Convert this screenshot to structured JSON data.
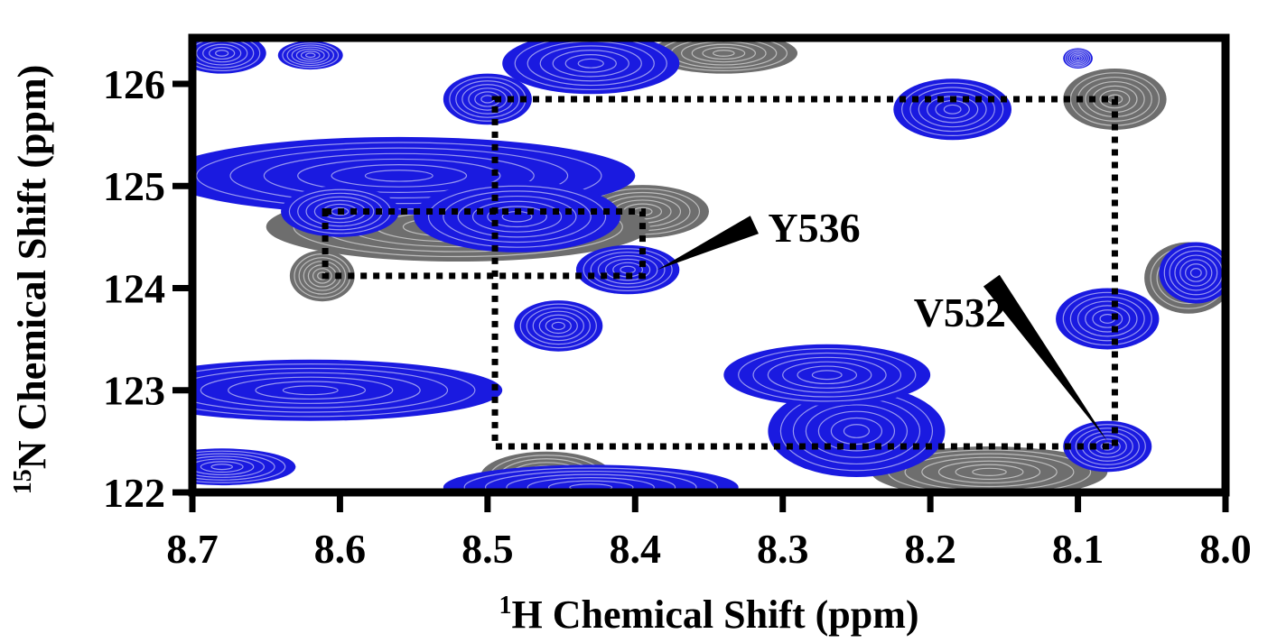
{
  "chart_data": {
    "type": "scatter",
    "subtype": "2D NMR HSQC overlay (contour)",
    "title": "",
    "xlabel": {
      "sup": "1",
      "main": "H Chemical Shift (ppm)"
    },
    "ylabel": {
      "sup": "15",
      "main": "N Chemical Shift (ppm)"
    },
    "xlim": [
      8.7,
      8.0
    ],
    "ylim": [
      126.45,
      122.0
    ],
    "x_reversed": true,
    "y_reversed": true,
    "grid": false,
    "x_ticks": [
      8.7,
      8.6,
      8.5,
      8.4,
      8.3,
      8.2,
      8.1,
      8.0
    ],
    "x_tick_labels": [
      "8.7",
      "8.6",
      "8.5",
      "8.4",
      "8.3",
      "8.2",
      "8.1",
      "8.0"
    ],
    "y_ticks": [
      122,
      123,
      124,
      125,
      126
    ],
    "y_tick_labels": [
      "122",
      "123",
      "124",
      "125",
      "126"
    ],
    "colors": {
      "series_a": "#1a1ae0",
      "series_b": "#6e6e6e",
      "frame": "#000000"
    },
    "series": [
      {
        "color": "#6e6e6e",
        "peaks": [
          {
            "x": 8.612,
            "y": 124.12,
            "rx": 0.022,
            "ry": 0.25
          },
          {
            "x": 8.395,
            "y": 124.75,
            "rx": 0.045,
            "ry": 0.26
          },
          {
            "x": 8.52,
            "y": 124.6,
            "rx": 0.13,
            "ry": 0.34
          },
          {
            "x": 8.46,
            "y": 122.15,
            "rx": 0.045,
            "ry": 0.25
          },
          {
            "x": 8.16,
            "y": 122.2,
            "rx": 0.08,
            "ry": 0.25
          },
          {
            "x": 8.075,
            "y": 125.85,
            "rx": 0.035,
            "ry": 0.3
          },
          {
            "x": 8.34,
            "y": 126.3,
            "rx": 0.05,
            "ry": 0.2
          },
          {
            "x": 8.025,
            "y": 124.1,
            "rx": 0.03,
            "ry": 0.35
          }
        ]
      },
      {
        "color": "#1a1ae0",
        "peaks": [
          {
            "x": 8.68,
            "y": 122.25,
            "rx": 0.05,
            "ry": 0.18
          },
          {
            "x": 8.62,
            "y": 123.0,
            "rx": 0.13,
            "ry": 0.3
          },
          {
            "x": 8.56,
            "y": 125.1,
            "rx": 0.16,
            "ry": 0.38
          },
          {
            "x": 8.6,
            "y": 124.75,
            "rx": 0.04,
            "ry": 0.25
          },
          {
            "x": 8.452,
            "y": 123.63,
            "rx": 0.03,
            "ry": 0.25
          },
          {
            "x": 8.405,
            "y": 124.18,
            "rx": 0.035,
            "ry": 0.24
          },
          {
            "x": 8.48,
            "y": 124.7,
            "rx": 0.07,
            "ry": 0.35
          },
          {
            "x": 8.43,
            "y": 122.05,
            "rx": 0.1,
            "ry": 0.22
          },
          {
            "x": 8.25,
            "y": 122.6,
            "rx": 0.06,
            "ry": 0.45
          },
          {
            "x": 8.27,
            "y": 123.15,
            "rx": 0.07,
            "ry": 0.3
          },
          {
            "x": 8.08,
            "y": 122.45,
            "rx": 0.03,
            "ry": 0.25
          },
          {
            "x": 8.08,
            "y": 123.7,
            "rx": 0.035,
            "ry": 0.3
          },
          {
            "x": 8.02,
            "y": 124.15,
            "rx": 0.025,
            "ry": 0.3
          },
          {
            "x": 8.185,
            "y": 125.75,
            "rx": 0.04,
            "ry": 0.3
          },
          {
            "x": 8.5,
            "y": 125.85,
            "rx": 0.03,
            "ry": 0.25
          },
          {
            "x": 8.43,
            "y": 126.2,
            "rx": 0.06,
            "ry": 0.3
          },
          {
            "x": 8.68,
            "y": 126.3,
            "rx": 0.03,
            "ry": 0.2
          },
          {
            "x": 8.62,
            "y": 126.28,
            "rx": 0.022,
            "ry": 0.14
          },
          {
            "x": 8.1,
            "y": 126.25,
            "rx": 0.01,
            "ry": 0.1
          }
        ]
      }
    ],
    "connectivity_boxes": [
      {
        "x1": 8.61,
        "x2": 8.395,
        "y1": 124.12,
        "y2": 124.75
      },
      {
        "x1": 8.495,
        "x2": 8.075,
        "y1": 122.45,
        "y2": 125.85
      }
    ],
    "annotations": [
      {
        "text": "V532",
        "x": 8.08,
        "y": 122.5,
        "text_x": 8.18,
        "text_y": 123.72
      },
      {
        "text": "Y536",
        "x": 8.385,
        "y": 124.18,
        "text_x": 8.31,
        "text_y": 124.55
      }
    ]
  }
}
